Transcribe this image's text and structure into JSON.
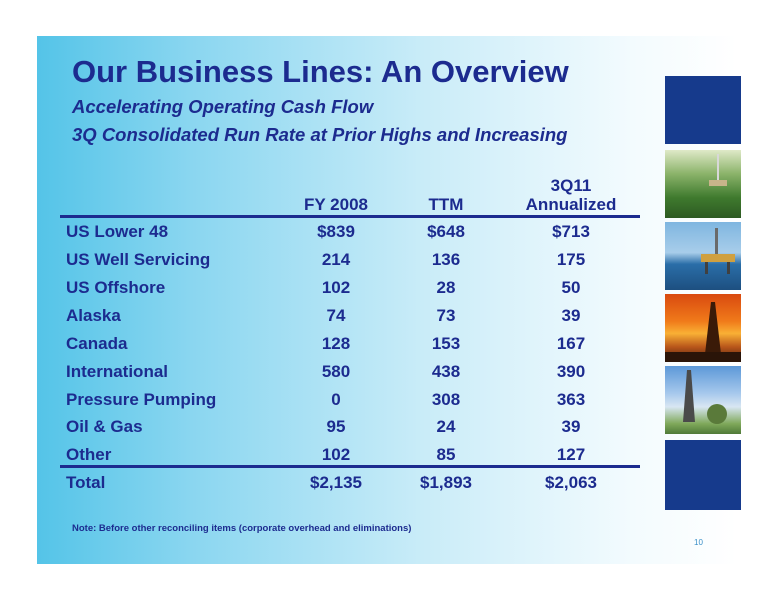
{
  "slide": {
    "title": "Our Business Lines: An Overview",
    "subtitle1": "Accelerating Operating Cash Flow",
    "subtitle2": "3Q Consolidated Run Rate at Prior Highs and Increasing",
    "page_number": "10"
  },
  "table": {
    "headers": {
      "col1": "FY 2008",
      "col2": "TTM",
      "col3_line1": "3Q11",
      "col3_line2": "Annualized"
    },
    "rows": [
      {
        "label": "US Lower 48",
        "fy2008": "$839",
        "ttm": "$648",
        "q3": "$713"
      },
      {
        "label": "US Well Servicing",
        "fy2008": "214",
        "ttm": "136",
        "q3": "175"
      },
      {
        "label": "US Offshore",
        "fy2008": "102",
        "ttm": "28",
        "q3": "50"
      },
      {
        "label": "Alaska",
        "fy2008": "74",
        "ttm": "73",
        "q3": "39"
      },
      {
        "label": "Canada",
        "fy2008": "128",
        "ttm": "153",
        "q3": "167"
      },
      {
        "label": "International",
        "fy2008": "580",
        "ttm": "438",
        "q3": "390"
      },
      {
        "label": "Pressure Pumping",
        "fy2008": "0",
        "ttm": "308",
        "q3": "363"
      },
      {
        "label": "Oil & Gas",
        "fy2008": "95",
        "ttm": "24",
        "q3": "39"
      },
      {
        "label": "Other",
        "fy2008": "102",
        "ttm": "85",
        "q3": "127"
      }
    ],
    "total": {
      "label": "Total",
      "fy2008": "$2,135",
      "ttm": "$1,893",
      "q3": "$2,063"
    }
  },
  "note": "Note: Before other reconciling items (corporate overhead and eliminations)",
  "colors": {
    "text": "#1c2b8f",
    "panel_navy": "#163a8c",
    "background_accent": "#54c4e8"
  }
}
